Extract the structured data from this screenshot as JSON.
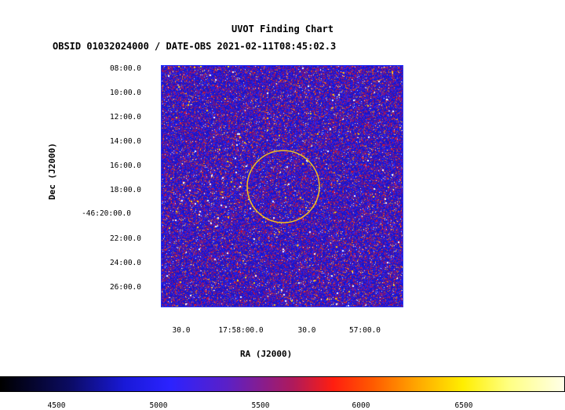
{
  "title": "UVOT Finding Chart",
  "subtitle": "OBSID 01032024000 / DATE-OBS 2021-02-11T08:45:02.3",
  "y_axis": {
    "label": "Dec (J2000)",
    "ticks": [
      "08:00.0",
      "10:00.0",
      "12:00.0",
      "14:00.0",
      "16:00.0",
      "18:00.0",
      "-46:20:00.0",
      "22:00.0",
      "24:00.0",
      "26:00.0"
    ]
  },
  "x_axis": {
    "label": "RA (J2000)",
    "ticks": [
      "30.0",
      "17:58:00.0",
      "30.0",
      "57:00.0"
    ]
  },
  "colorbar": {
    "ticks": [
      "4500",
      "5000",
      "5500",
      "6000",
      "6500"
    ]
  },
  "colors": {
    "field_bg": "#1a14c8",
    "frame": "#2233ff",
    "circle": "#f0c020"
  },
  "icons": {
    "field_image": "sky-field-image",
    "target_circle": "circle-marker"
  }
}
